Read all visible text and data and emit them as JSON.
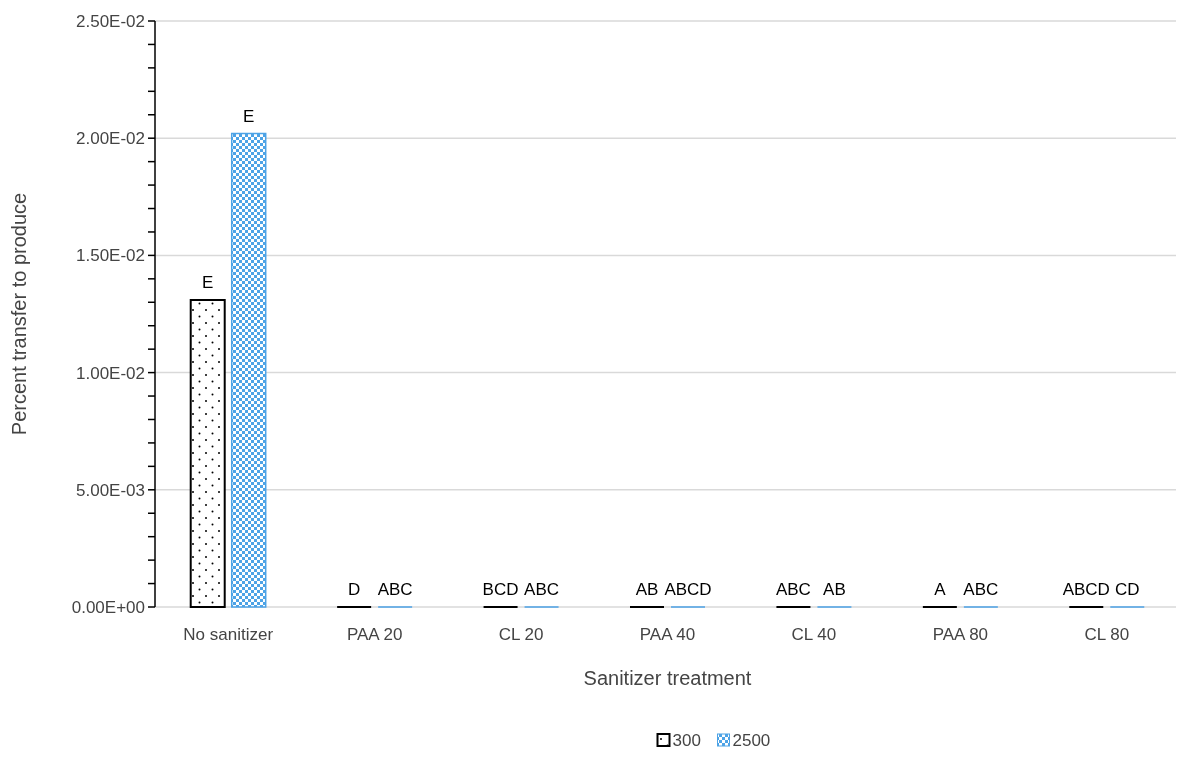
{
  "chart_data": {
    "type": "bar",
    "xlabel": "Sanitizer treatment",
    "ylabel": "Percent transfer to produce",
    "categories": [
      "No sanitizer",
      "PAA 20",
      "CL 20",
      "PAA 40",
      "CL 40",
      "PAA 80",
      "CL 80"
    ],
    "series": [
      {
        "name": "300",
        "color": "#000000",
        "values": [
          0.0131,
          0,
          0,
          0,
          0,
          0,
          0
        ]
      },
      {
        "name": "2500",
        "color": "#4da3e6",
        "values": [
          0.0202,
          0,
          0,
          0,
          0,
          0,
          0
        ]
      }
    ],
    "ylim": [
      0,
      0.025
    ],
    "yticks": [
      {
        "value": 0,
        "label": "0.00E+00"
      },
      {
        "value": 0.001,
        "label": null
      },
      {
        "value": 0.002,
        "label": null
      },
      {
        "value": 0.003,
        "label": null
      },
      {
        "value": 0.004,
        "label": null
      },
      {
        "value": 0.005,
        "label": "5.00E-03"
      },
      {
        "value": 0.006,
        "label": null
      },
      {
        "value": 0.007,
        "label": null
      },
      {
        "value": 0.008,
        "label": null
      },
      {
        "value": 0.009,
        "label": null
      },
      {
        "value": 0.01,
        "label": "1.00E-02"
      },
      {
        "value": 0.011,
        "label": null
      },
      {
        "value": 0.012,
        "label": null
      },
      {
        "value": 0.013,
        "label": null
      },
      {
        "value": 0.014,
        "label": null
      },
      {
        "value": 0.015,
        "label": "1.50E-02"
      },
      {
        "value": 0.016,
        "label": null
      },
      {
        "value": 0.017,
        "label": null
      },
      {
        "value": 0.018,
        "label": null
      },
      {
        "value": 0.019,
        "label": null
      },
      {
        "value": 0.02,
        "label": "2.00E-02"
      },
      {
        "value": 0.021,
        "label": null
      },
      {
        "value": 0.022,
        "label": null
      },
      {
        "value": 0.023,
        "label": null
      },
      {
        "value": 0.024,
        "label": null
      },
      {
        "value": 0.025,
        "label": "2.50E-02"
      }
    ],
    "grid": "y",
    "legend": "bottom",
    "annotations": [
      {
        "text": "E",
        "x": "No sanitizer",
        "y": 0.0131
      },
      {
        "text": "E",
        "x": "No sanitizer",
        "y": 0.0202
      },
      {
        "text": "D",
        "x": "PAA 20",
        "y": 0
      },
      {
        "text": "ABC",
        "x": "PAA 20",
        "y": 0
      },
      {
        "text": "BCD",
        "x": "CL 20",
        "y": 0
      },
      {
        "text": "ABC",
        "x": "CL 20",
        "y": 0
      },
      {
        "text": "AB",
        "x": "PAA 40",
        "y": 0
      },
      {
        "text": "ABCD",
        "x": "PAA 40",
        "y": 0
      },
      {
        "text": "ABC",
        "x": "CL 40",
        "y": 0
      },
      {
        "text": "AB",
        "x": "CL 40",
        "y": 0
      },
      {
        "text": "A",
        "x": "PAA 80",
        "y": 0
      },
      {
        "text": "ABC",
        "x": "PAA 80",
        "y": 0
      },
      {
        "text": "ABCD",
        "x": "CL 80",
        "y": 0
      },
      {
        "text": "CD",
        "x": "CL 80",
        "y": 0
      }
    ]
  }
}
